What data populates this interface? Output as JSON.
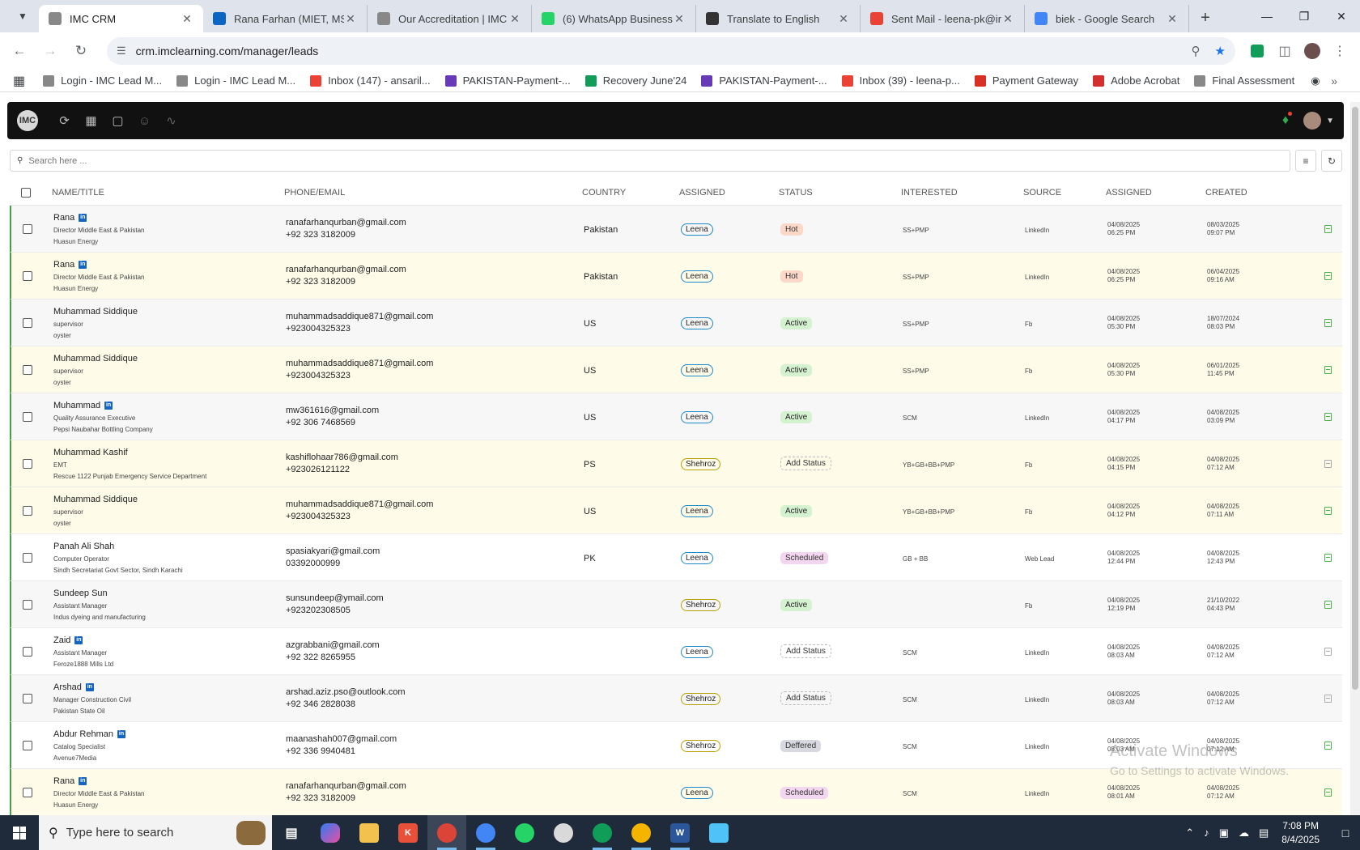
{
  "browser": {
    "tabs": [
      {
        "title": "IMC CRM",
        "active": true,
        "favicon": "imc-icon",
        "color": "#888888"
      },
      {
        "title": "Rana Farhan (MIET, MS E",
        "active": false,
        "favicon": "linkedin-icon",
        "color": "#0a66c2"
      },
      {
        "title": "Our Accreditation | IMC C",
        "active": false,
        "favicon": "imc-icon",
        "color": "#888888"
      },
      {
        "title": "(6) WhatsApp Business",
        "active": false,
        "favicon": "whatsapp-icon",
        "color": "#25d366"
      },
      {
        "title": "Translate to English",
        "active": false,
        "favicon": "openai-icon",
        "color": "#333333"
      },
      {
        "title": "Sent Mail - leena-pk@im",
        "active": false,
        "favicon": "gmail-icon",
        "color": "#ea4335"
      },
      {
        "title": "biek - Google Search",
        "active": false,
        "favicon": "google-icon",
        "color": "#4285f4"
      }
    ],
    "url": "crm.imclearning.com/manager/leads",
    "bookmarks": [
      {
        "label": "Login - IMC Lead M...",
        "icon": "imc-icon",
        "color": "#888888"
      },
      {
        "label": "Login - IMC Lead M...",
        "icon": "imc-icon",
        "color": "#888888"
      },
      {
        "label": "Inbox (147) - ansaril...",
        "icon": "gmail-icon",
        "color": "#ea4335"
      },
      {
        "label": "PAKISTAN-Payment-...",
        "icon": "forms-icon",
        "color": "#673ab7"
      },
      {
        "label": "Recovery June'24",
        "icon": "sheets-icon",
        "color": "#0f9d58"
      },
      {
        "label": "PAKISTAN-Payment-...",
        "icon": "forms-icon",
        "color": "#673ab7"
      },
      {
        "label": "Inbox (39) - leena-p...",
        "icon": "gmail-icon",
        "color": "#ea4335"
      },
      {
        "label": "Payment Gateway",
        "icon": "gateway-icon",
        "color": "#d93025"
      },
      {
        "label": "Adobe Acrobat",
        "icon": "acrobat-icon",
        "color": "#d32f2f"
      },
      {
        "label": "Final Assessment",
        "icon": "imc-icon",
        "color": "#888888"
      }
    ]
  },
  "search": {
    "placeholder": "Search here ..."
  },
  "table": {
    "headers": {
      "name": "NAME/TITLE",
      "phone": "PHONE/EMAIL",
      "country": "COUNTRY",
      "assigned_to": "ASSIGNED",
      "status": "STATUS",
      "interested": "INTERESTED",
      "source": "SOURCE",
      "assigned_date": "ASSIGNED",
      "created": "CREATED"
    },
    "rows": [
      {
        "name": "Rana",
        "linkedin": true,
        "title": "Director Middle East & Pakistan",
        "company": "Huasun Energy",
        "email": "ranafarhanqurban@gmail.com",
        "phone": "+92 323 3182009",
        "country": "Pakistan",
        "assigned_to": "Leena",
        "status": "Hot",
        "status_kind": "hot",
        "interested": "SS+PMP",
        "source": "LinkedIn",
        "assigned_date": "04/08/2025",
        "assigned_time": "06:25 PM",
        "created_date": "08/03/2025",
        "created_time": "09:07 PM",
        "bg": "odd",
        "note": "green"
      },
      {
        "name": "Rana",
        "linkedin": true,
        "title": "Director Middle East & Pakistan",
        "company": "Huasun Energy",
        "email": "ranafarhanqurban@gmail.com",
        "phone": "+92 323 3182009",
        "country": "Pakistan",
        "assigned_to": "Leena",
        "status": "Hot",
        "status_kind": "hot",
        "interested": "SS+PMP",
        "source": "LinkedIn",
        "assigned_date": "04/08/2025",
        "assigned_time": "06:25 PM",
        "created_date": "06/04/2025",
        "created_time": "09:16 AM",
        "bg": "yellow",
        "note": "green"
      },
      {
        "name": "Muhammad Siddique",
        "linkedin": false,
        "title": "supervisor",
        "company": "oyster",
        "email": "muhammadsaddique871@gmail.com",
        "phone": "+923004325323",
        "country": "US",
        "assigned_to": "Leena",
        "status": "Active",
        "status_kind": "active",
        "interested": "SS+PMP",
        "source": "Fb",
        "assigned_date": "04/08/2025",
        "assigned_time": "05:30 PM",
        "created_date": "18/07/2024",
        "created_time": "08:03 PM",
        "bg": "odd",
        "note": "green"
      },
      {
        "name": "Muhammad Siddique",
        "linkedin": false,
        "title": "supervisor",
        "company": "oyster",
        "email": "muhammadsaddique871@gmail.com",
        "phone": "+923004325323",
        "country": "US",
        "assigned_to": "Leena",
        "status": "Active",
        "status_kind": "active",
        "interested": "SS+PMP",
        "source": "Fb",
        "assigned_date": "04/08/2025",
        "assigned_time": "05:30 PM",
        "created_date": "06/01/2025",
        "created_time": "11:45 PM",
        "bg": "yellow",
        "note": "green"
      },
      {
        "name": "Muhammad",
        "linkedin": true,
        "title": "Quality Assurance Executive",
        "company": "Pepsi Naubahar Bottling Company",
        "email": "mw361616@gmail.com",
        "phone": "+92 306 7468569",
        "country": "US",
        "assigned_to": "Leena",
        "status": "Active",
        "status_kind": "active",
        "interested": "SCM",
        "source": "LinkedIn",
        "assigned_date": "04/08/2025",
        "assigned_time": "04:17 PM",
        "created_date": "04/08/2025",
        "created_time": "03:09 PM",
        "bg": "odd",
        "note": "green"
      },
      {
        "name": "Muhammad Kashif",
        "linkedin": false,
        "title": "EMT",
        "company": "Rescue 1122 Punjab Emergency Service Department",
        "email": "kashiflohaar786@gmail.com",
        "phone": "+923026121122",
        "country": "PS",
        "assigned_to": "Shehroz",
        "status": "Add Status",
        "status_kind": "add",
        "interested": "YB+GB+BB+PMP",
        "source": "Fb",
        "assigned_date": "04/08/2025",
        "assigned_time": "04:15 PM",
        "created_date": "04/08/2025",
        "created_time": "07:12 AM",
        "bg": "yellow",
        "note": "grey"
      },
      {
        "name": "Muhammad Siddique",
        "linkedin": false,
        "title": "supervisor",
        "company": "oyster",
        "email": "muhammadsaddique871@gmail.com",
        "phone": "+923004325323",
        "country": "US",
        "assigned_to": "Leena",
        "status": "Active",
        "status_kind": "active",
        "interested": "YB+GB+BB+PMP",
        "source": "Fb",
        "assigned_date": "04/08/2025",
        "assigned_time": "04:12 PM",
        "created_date": "04/08/2025",
        "created_time": "07:11 AM",
        "bg": "yellow",
        "note": "green"
      },
      {
        "name": "Panah Ali Shah",
        "linkedin": false,
        "title": "Computer Operator",
        "company": "Sindh Secretariat Govt Sector, Sindh Karachi",
        "email": "spasiakyari@gmail.com",
        "phone": "03392000999",
        "country": "PK",
        "assigned_to": "Leena",
        "status": "Scheduled",
        "status_kind": "scheduled",
        "interested": "GB + BB",
        "source": "Web Lead",
        "assigned_date": "04/08/2025",
        "assigned_time": "12:44 PM",
        "created_date": "04/08/2025",
        "created_time": "12:43 PM",
        "bg": "white",
        "note": "green"
      },
      {
        "name": "Sundeep Sun",
        "linkedin": false,
        "title": "Assistant Manager",
        "company": "Indus dyeing and manufacturing",
        "email": "sunsundeep@ymail.com",
        "phone": "+923202308505",
        "country": "",
        "assigned_to": "Shehroz",
        "status": "Active",
        "status_kind": "active",
        "interested": "",
        "source": "Fb",
        "assigned_date": "04/08/2025",
        "assigned_time": "12:19 PM",
        "created_date": "21/10/2022",
        "created_time": "04:43 PM",
        "bg": "odd",
        "note": "green"
      },
      {
        "name": "Zaid",
        "linkedin": true,
        "title": "Assistant Manager",
        "company": "Feroze1888 Mills Ltd",
        "email": "azgrabbani@gmail.com",
        "phone": "+92 322 8265955",
        "country": "",
        "assigned_to": "Leena",
        "status": "Add Status",
        "status_kind": "add",
        "interested": "SCM",
        "source": "LinkedIn",
        "assigned_date": "04/08/2025",
        "assigned_time": "08:03 AM",
        "created_date": "04/08/2025",
        "created_time": "07:12 AM",
        "bg": "white",
        "note": "grey"
      },
      {
        "name": "Arshad",
        "linkedin": true,
        "title": "Manager Construction Civil",
        "company": "Pakistan State Oil",
        "email": "arshad.aziz.pso@outlook.com",
        "phone": "+92 346 2828038",
        "country": "",
        "assigned_to": "Shehroz",
        "status": "Add Status",
        "status_kind": "add",
        "interested": "SCM",
        "source": "LinkedIn",
        "assigned_date": "04/08/2025",
        "assigned_time": "08:03 AM",
        "created_date": "04/08/2025",
        "created_time": "07:12 AM",
        "bg": "odd",
        "note": "grey"
      },
      {
        "name": "Abdur Rehman",
        "linkedin": true,
        "title": "Catalog Specialist",
        "company": "Avenue7Media",
        "email": "maanashah007@gmail.com",
        "phone": "+92 336 9940481",
        "country": "",
        "assigned_to": "Shehroz",
        "status": "Deffered",
        "status_kind": "deferred",
        "interested": "SCM",
        "source": "LinkedIn",
        "assigned_date": "04/08/2025",
        "assigned_time": "08:03 AM",
        "created_date": "04/08/2025",
        "created_time": "07:12 AM",
        "bg": "white",
        "note": "green"
      },
      {
        "name": "Rana",
        "linkedin": true,
        "title": "Director Middle East & Pakistan",
        "company": "Huasun Energy",
        "email": "ranafarhanqurban@gmail.com",
        "phone": "+92 323 3182009",
        "country": "",
        "assigned_to": "Leena",
        "status": "Scheduled",
        "status_kind": "scheduled",
        "interested": "SCM",
        "source": "LinkedIn",
        "assigned_date": "04/08/2025",
        "assigned_time": "08:01 AM",
        "created_date": "04/08/2025",
        "created_time": "07:12 AM",
        "bg": "yellow",
        "note": "green"
      }
    ]
  },
  "watermark": {
    "line1": "Activate Windows",
    "line2": "Go to Settings to activate Windows."
  },
  "taskbar": {
    "search_placeholder": "Type here to search",
    "time": "7:08 PM",
    "date": "8/4/2025"
  }
}
